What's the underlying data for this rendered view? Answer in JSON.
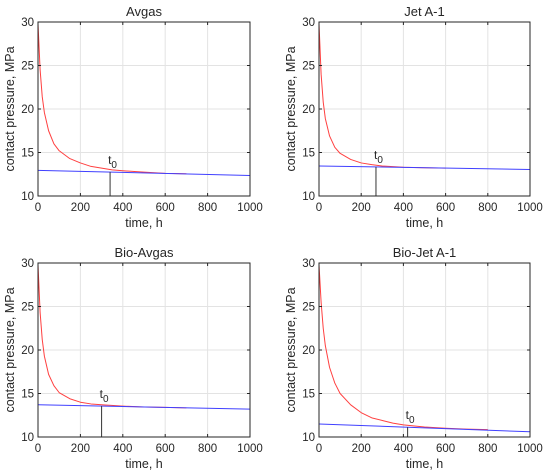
{
  "chart_data": [
    {
      "type": "line",
      "title": "Avgas",
      "xlabel": "time, h",
      "ylabel": "contact pressure, MPa",
      "xlim": [
        0,
        1000
      ],
      "ylim": [
        10,
        30
      ],
      "xticks": [
        0,
        200,
        400,
        600,
        800,
        1000
      ],
      "yticks": [
        10,
        15,
        20,
        25,
        30
      ],
      "grid": true,
      "series": [
        {
          "color": "#ff4040",
          "x": [
            0,
            10,
            20,
            30,
            50,
            75,
            100,
            150,
            200,
            250,
            300,
            350,
            400,
            500,
            600,
            700
          ],
          "y": [
            29.8,
            24.5,
            21.4,
            19.6,
            17.5,
            16.0,
            15.2,
            14.3,
            13.8,
            13.4,
            13.2,
            13.0,
            12.9,
            12.75,
            12.6,
            12.55
          ]
        },
        {
          "color": "#4040ff",
          "x": [
            0,
            1000
          ],
          "y": [
            12.95,
            12.35
          ]
        }
      ],
      "t0": {
        "label": "t",
        "sub": "0",
        "x": 340
      }
    },
    {
      "type": "line",
      "title": "Jet A-1",
      "xlabel": "time, h",
      "ylabel": "contact pressure, MPa",
      "xlim": [
        0,
        1000
      ],
      "ylim": [
        10,
        30
      ],
      "xticks": [
        0,
        200,
        400,
        600,
        800,
        1000
      ],
      "yticks": [
        10,
        15,
        20,
        25,
        30
      ],
      "grid": true,
      "series": [
        {
          "color": "#ff4040",
          "x": [
            0,
            10,
            20,
            30,
            50,
            75,
            100,
            150,
            200,
            250,
            300,
            400,
            500,
            600
          ],
          "y": [
            29.8,
            24.0,
            20.8,
            18.9,
            16.9,
            15.6,
            14.9,
            14.2,
            13.8,
            13.6,
            13.45,
            13.3,
            13.25,
            13.2
          ]
        },
        {
          "color": "#4040ff",
          "x": [
            0,
            1000
          ],
          "y": [
            13.45,
            13.05
          ]
        }
      ],
      "t0": {
        "label": "t",
        "sub": "0",
        "x": 270
      }
    },
    {
      "type": "line",
      "title": "Bio-Avgas",
      "xlabel": "time, h",
      "ylabel": "contact pressure, MPa",
      "xlim": [
        0,
        1000
      ],
      "ylim": [
        10,
        30
      ],
      "xticks": [
        0,
        200,
        400,
        600,
        800,
        1000
      ],
      "yticks": [
        10,
        15,
        20,
        25,
        30
      ],
      "grid": true,
      "series": [
        {
          "color": "#ff4040",
          "x": [
            0,
            10,
            20,
            30,
            50,
            75,
            100,
            150,
            200,
            250,
            300,
            400,
            500,
            600,
            700
          ],
          "y": [
            29.8,
            24.3,
            21.2,
            19.3,
            17.2,
            15.9,
            15.1,
            14.4,
            14.0,
            13.8,
            13.7,
            13.55,
            13.45,
            13.4,
            13.35
          ]
        },
        {
          "color": "#4040ff",
          "x": [
            0,
            1000
          ],
          "y": [
            13.7,
            13.2
          ]
        }
      ],
      "t0": {
        "label": "t",
        "sub": "0",
        "x": 300
      }
    },
    {
      "type": "line",
      "title": "Bio-Jet A-1",
      "xlabel": "time, h",
      "ylabel": "contact pressure, MPa",
      "xlim": [
        0,
        1000
      ],
      "ylim": [
        10,
        30
      ],
      "xticks": [
        0,
        200,
        400,
        600,
        800,
        1000
      ],
      "yticks": [
        10,
        15,
        20,
        25,
        30
      ],
      "grid": true,
      "series": [
        {
          "color": "#ff4040",
          "x": [
            0,
            10,
            20,
            30,
            50,
            75,
            100,
            150,
            200,
            250,
            300,
            350,
            400,
            500,
            600,
            700,
            800
          ],
          "y": [
            29.8,
            25.5,
            22.5,
            20.5,
            18.0,
            16.2,
            15.0,
            13.7,
            12.8,
            12.2,
            11.9,
            11.6,
            11.4,
            11.15,
            11.0,
            10.9,
            10.85
          ]
        },
        {
          "color": "#4040ff",
          "x": [
            0,
            1000
          ],
          "y": [
            11.5,
            10.6
          ]
        }
      ],
      "t0": {
        "label": "t",
        "sub": "0",
        "x": 420
      }
    }
  ]
}
